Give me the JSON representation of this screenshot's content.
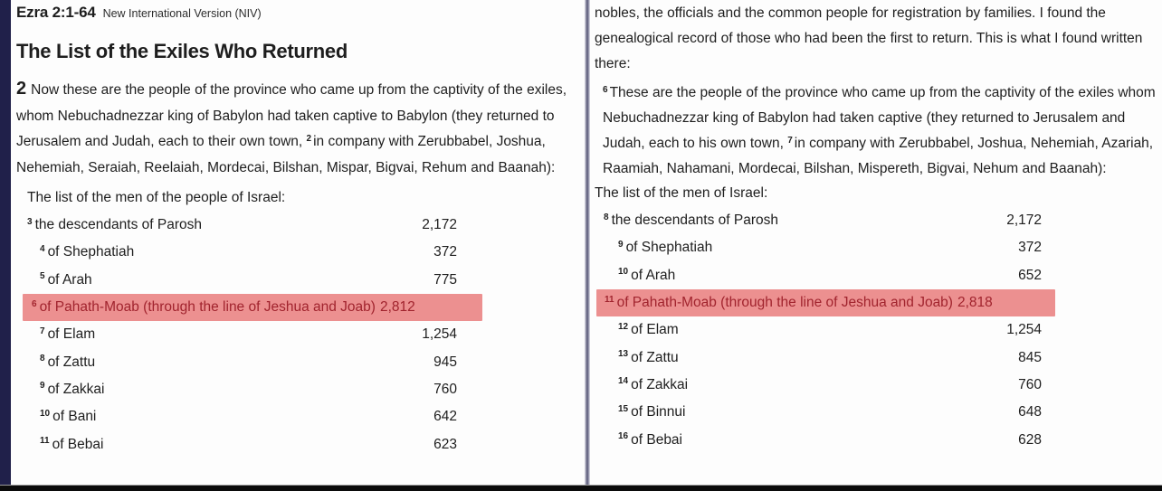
{
  "colors": {
    "highlight_background": "#ec9090",
    "highlight_text": "#a1242e",
    "left_edge_strip": "#20204a"
  },
  "left_page": {
    "reference": "Ezra 2:1-64",
    "version": "New International Version (NIV)",
    "heading": "The List of the Exiles Who Returned",
    "paragraph": {
      "chapter_number": "2",
      "text_1": "Now these are the people of the province who came up from the captivity of the exiles, whom Nebuchadnezzar king of Babylon had taken captive to Babylon (they returned to Jerusalem and Judah, each to their own town, ",
      "verse_marker": "2",
      "text_2": "in company with Zerubbabel, Joshua, Nehemiah, Seraiah, Reelaiah, Mordecai, Bilshan, Mispar, Bigvai, Rehum and Baanah):"
    },
    "list_intro": "The list of the men of the people of Israel:",
    "rows": [
      {
        "verse": "3",
        "name": "the descendants of Parosh",
        "value": "2,172",
        "indent": 0,
        "highlight": false
      },
      {
        "verse": "4",
        "name": "of Shephatiah",
        "value": "372",
        "indent": 1,
        "highlight": false
      },
      {
        "verse": "5",
        "name": "of Arah",
        "value": "775",
        "indent": 1,
        "highlight": false
      },
      {
        "verse": "6",
        "name": "of Pahath-Moab (through the line of Jeshua and Joab)",
        "value": "2,812",
        "indent": 1,
        "highlight": true
      },
      {
        "verse": "7",
        "name": "of Elam",
        "value": "1,254",
        "indent": 1,
        "highlight": false
      },
      {
        "verse": "8",
        "name": "of Zattu",
        "value": "945",
        "indent": 1,
        "highlight": false
      },
      {
        "verse": "9",
        "name": "of Zakkai",
        "value": "760",
        "indent": 1,
        "highlight": false
      },
      {
        "verse": "10",
        "name": "of Bani",
        "value": "642",
        "indent": 1,
        "highlight": false
      },
      {
        "verse": "11",
        "name": "of Bebai",
        "value": "623",
        "indent": 1,
        "highlight": false
      }
    ]
  },
  "right_page": {
    "intro_paragraph": "nobles, the officials and the common people for registration by families. I found the genealogical record of those who had been the first to return. This is what I found written there:",
    "paragraph": {
      "verse_marker_1": "6",
      "text_1": "These are the people of the province who came up from the captivity of the exiles whom Nebuchadnezzar king of Babylon had taken captive (they returned to Jerusalem and Judah, each to his own town, ",
      "verse_marker_2": "7",
      "text_2": "in company with Zerubbabel, Joshua, Nehemiah, Azariah, Raamiah, Nahamani, Mordecai, Bilshan, Mispereth, Bigvai, Nehum and Baanah):"
    },
    "list_intro": "The list of the men of Israel:",
    "rows": [
      {
        "verse": "8",
        "name": "the descendants of Parosh",
        "value": "2,172",
        "indent": 0,
        "highlight": false
      },
      {
        "verse": "9",
        "name": "of Shephatiah",
        "value": "372",
        "indent": 1,
        "highlight": false
      },
      {
        "verse": "10",
        "name": "of Arah",
        "value": "652",
        "indent": 1,
        "highlight": false
      },
      {
        "verse": "11",
        "name": "of Pahath-Moab (through the line of Jeshua and Joab)",
        "value": "2,818",
        "indent": 1,
        "highlight": true
      },
      {
        "verse": "12",
        "name": "of Elam",
        "value": "1,254",
        "indent": 1,
        "highlight": false
      },
      {
        "verse": "13",
        "name": "of Zattu",
        "value": "845",
        "indent": 1,
        "highlight": false
      },
      {
        "verse": "14",
        "name": "of Zakkai",
        "value": "760",
        "indent": 1,
        "highlight": false
      },
      {
        "verse": "15",
        "name": "of Binnui",
        "value": "648",
        "indent": 1,
        "highlight": false
      },
      {
        "verse": "16",
        "name": "of Bebai",
        "value": "628",
        "indent": 1,
        "highlight": false
      }
    ]
  }
}
